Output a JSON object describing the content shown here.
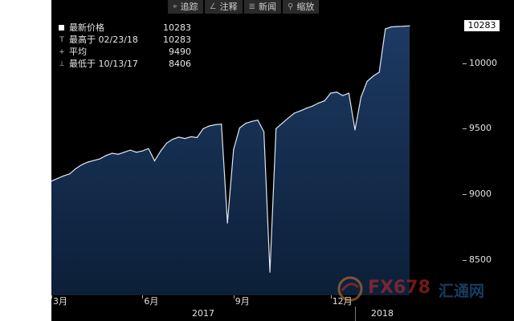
{
  "toolbar": {
    "items": [
      {
        "label": "追踪",
        "icon": "crosshair-icon",
        "glyph": "⌖"
      },
      {
        "label": "注释",
        "icon": "pencil-icon",
        "glyph": "∠"
      },
      {
        "label": "新闻",
        "icon": "news-icon",
        "glyph": "≣"
      },
      {
        "label": "缩放",
        "icon": "zoom-icon",
        "glyph": "⚲"
      }
    ]
  },
  "legend": {
    "rows": [
      {
        "marker": "square",
        "label": "最新价格",
        "value": "10283"
      },
      {
        "marker": "T",
        "label": "最高于 02/23/18",
        "value": "10283"
      },
      {
        "marker": "+",
        "label": "平均",
        "value": "9490"
      },
      {
        "marker": "⊥",
        "label": "最低于 10/13/17",
        "value": "8406"
      }
    ]
  },
  "last_value_badge": "10283",
  "watermark": {
    "text_a": "FX678",
    "text_b": "汇通网"
  },
  "colors": {
    "fill_top": "#1d3a63",
    "fill_bottom": "#0c1f38",
    "line": "#dfe7f2",
    "background": "#000000"
  },
  "chart_data": {
    "type": "area",
    "series": [
      {
        "values": [
          9100,
          9120,
          9140,
          9155,
          9195,
          9225,
          9245,
          9258,
          9270,
          9295,
          9312,
          9305,
          9320,
          9336,
          9320,
          9330,
          9348,
          9255,
          9330,
          9390,
          9420,
          9435,
          9425,
          9438,
          9432,
          9500,
          9520,
          9530,
          9535,
          8780,
          9340,
          9505,
          9540,
          9555,
          9565,
          9475,
          8406,
          9500,
          9540,
          9580,
          9618,
          9635,
          9655,
          9672,
          9695,
          9712,
          9770,
          9778,
          9752,
          9770,
          9490,
          9740,
          9860,
          9900,
          9930,
          10260,
          10275,
          10278,
          10280,
          10283
        ]
      }
    ],
    "x_axis": {
      "month_labels": [
        {
          "label": "3月",
          "index": 0
        },
        {
          "label": "6月",
          "index": 15
        },
        {
          "label": "9月",
          "index": 30
        },
        {
          "label": "12月",
          "index": 46
        }
      ],
      "year_labels": [
        {
          "label": "2017",
          "from_index": 0,
          "to_index": 50
        },
        {
          "label": "2018",
          "from_index": 50,
          "to_index": 59
        }
      ]
    },
    "y_axis": {
      "ticks": [
        8500,
        9000,
        9500,
        10000
      ],
      "range": [
        8230,
        10480
      ]
    },
    "grid": false,
    "legend": "top-left"
  }
}
